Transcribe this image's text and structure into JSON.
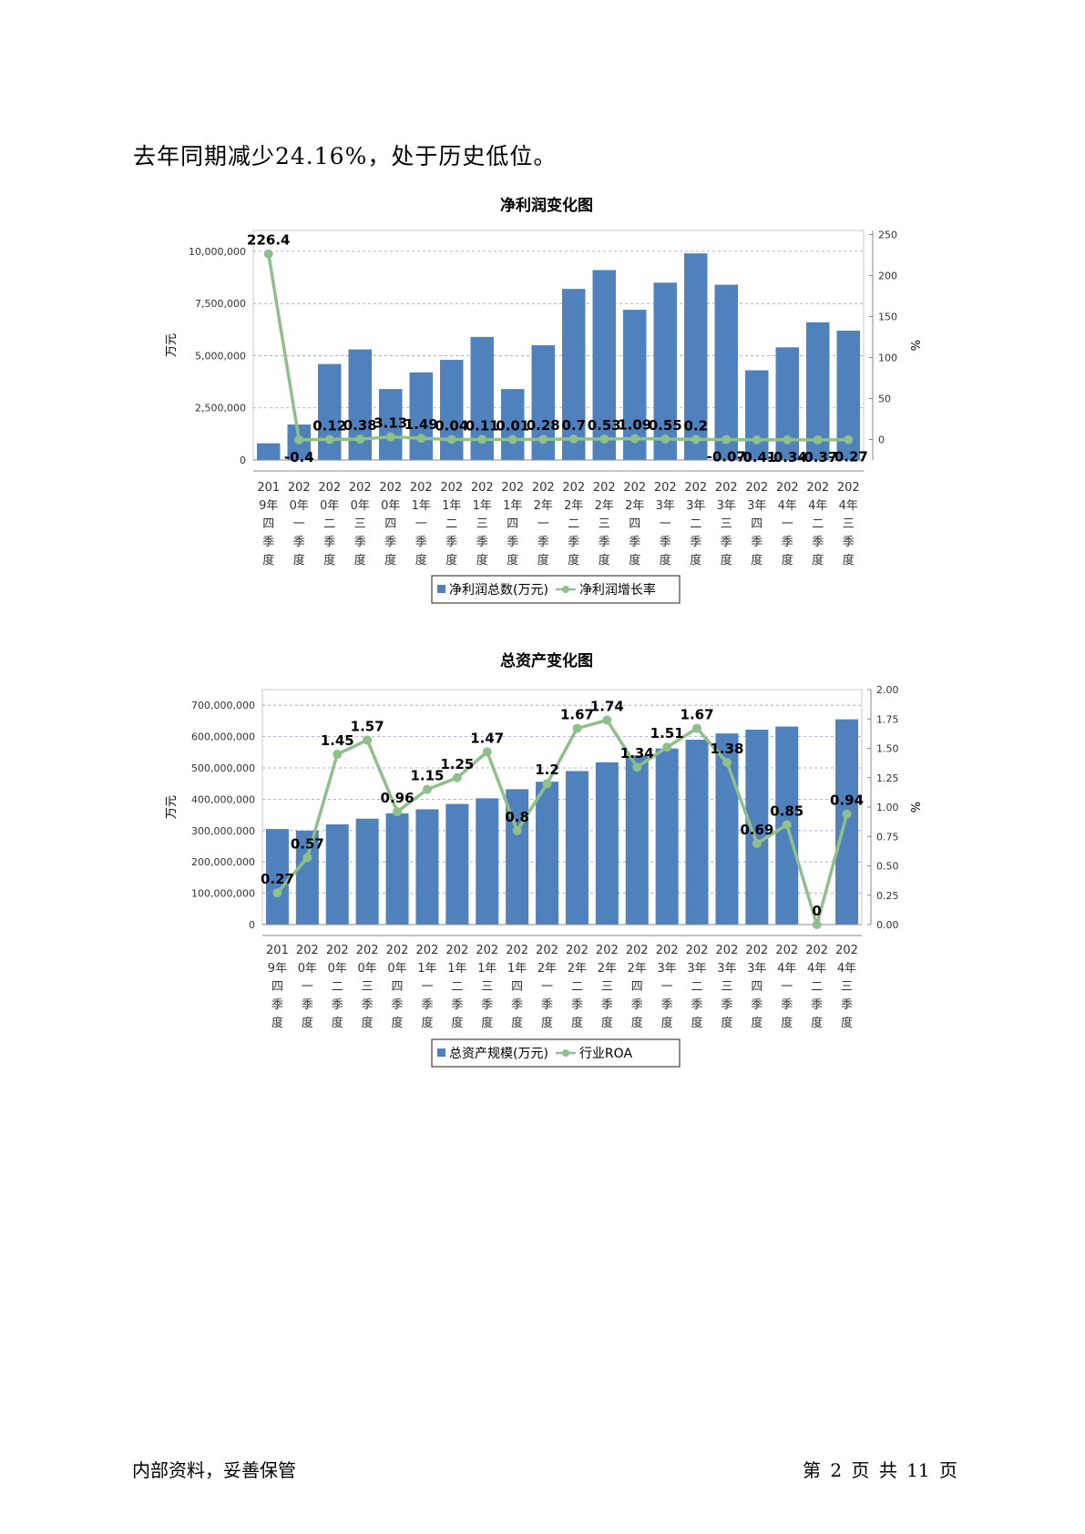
{
  "intro_text": "去年同期减少24.16%，处于历史低位。",
  "footer": {
    "left": "内部资料，妥善保管",
    "right": "第 2 页   共 11 页"
  },
  "chart_data": [
    {
      "type": "bar",
      "title": "净利润变化图",
      "ylabel": "万元",
      "y2label": "%",
      "ylim": [
        0,
        11000000
      ],
      "y2lim": [
        -25,
        255
      ],
      "yticks": [
        0,
        2500000,
        5000000,
        7500000,
        10000000
      ],
      "y2ticks": [
        0,
        50,
        100,
        150,
        200,
        250
      ],
      "grid": true,
      "legend_position": "bottom",
      "bar_color": "#4f81bd",
      "line_color": "#8fbf8a",
      "categories": [
        [
          "201",
          "9年",
          "四",
          "季",
          "度"
        ],
        [
          "202",
          "0年",
          "一",
          "季",
          "度"
        ],
        [
          "202",
          "0年",
          "二",
          "季",
          "度"
        ],
        [
          "202",
          "0年",
          "三",
          "季",
          "度"
        ],
        [
          "202",
          "0年",
          "四",
          "季",
          "度"
        ],
        [
          "202",
          "1年",
          "一",
          "季",
          "度"
        ],
        [
          "202",
          "1年",
          "二",
          "季",
          "度"
        ],
        [
          "202",
          "1年",
          "三",
          "季",
          "度"
        ],
        [
          "202",
          "1年",
          "四",
          "季",
          "度"
        ],
        [
          "202",
          "2年",
          "一",
          "季",
          "度"
        ],
        [
          "202",
          "2年",
          "二",
          "季",
          "度"
        ],
        [
          "202",
          "2年",
          "三",
          "季",
          "度"
        ],
        [
          "202",
          "2年",
          "四",
          "季",
          "度"
        ],
        [
          "202",
          "3年",
          "一",
          "季",
          "度"
        ],
        [
          "202",
          "3年",
          "二",
          "季",
          "度"
        ],
        [
          "202",
          "3年",
          "三",
          "季",
          "度"
        ],
        [
          "202",
          "3年",
          "四",
          "季",
          "度"
        ],
        [
          "202",
          "4年",
          "一",
          "季",
          "度"
        ],
        [
          "202",
          "4年",
          "二",
          "季",
          "度"
        ],
        [
          "202",
          "4年",
          "三",
          "季",
          "度"
        ]
      ],
      "series": [
        {
          "name": "净利润总数(万元)",
          "kind": "bar",
          "values": [
            800000,
            1700000,
            4600000,
            5300000,
            3400000,
            4200000,
            4800000,
            5900000,
            3400000,
            5500000,
            8200000,
            9100000,
            7200000,
            8500000,
            9900000,
            8400000,
            4300000,
            5400000,
            6600000,
            6200000
          ]
        },
        {
          "name": "净利润增长率",
          "kind": "line",
          "values": [
            226.4,
            -0.4,
            0.12,
            0.38,
            3.13,
            1.49,
            0.04,
            0.11,
            0.01,
            0.28,
            0.7,
            0.53,
            1.09,
            0.55,
            0.2,
            -0.07,
            -0.41,
            -0.34,
            -0.37,
            -0.27
          ],
          "labels": [
            "226.4",
            "-0.4",
            "0.12",
            "0.38",
            "3.13",
            "1.49",
            "0.04",
            "0.11",
            "0.01",
            "0.28",
            "0.7",
            "0.53",
            "1.09",
            "0.55",
            "0.2",
            "-0.07",
            "-0.41",
            "-0.34",
            "-0.37",
            "-0.27"
          ]
        }
      ]
    },
    {
      "type": "bar",
      "title": "总资产变化图",
      "ylabel": "万元",
      "y2label": "%",
      "ylim": [
        0,
        750000000
      ],
      "y2lim": [
        0,
        2.0
      ],
      "yticks": [
        0,
        100000000,
        200000000,
        300000000,
        400000000,
        500000000,
        600000000,
        700000000
      ],
      "y2ticks": [
        0,
        0.25,
        0.5,
        0.75,
        1.0,
        1.25,
        1.5,
        1.75,
        2.0
      ],
      "grid": true,
      "legend_position": "bottom",
      "bar_color": "#4f81bd",
      "line_color": "#8fbf8a",
      "categories": [
        [
          "201",
          "9年",
          "四",
          "季",
          "度"
        ],
        [
          "202",
          "0年",
          "一",
          "季",
          "度"
        ],
        [
          "202",
          "0年",
          "二",
          "季",
          "度"
        ],
        [
          "202",
          "0年",
          "三",
          "季",
          "度"
        ],
        [
          "202",
          "0年",
          "四",
          "季",
          "度"
        ],
        [
          "202",
          "1年",
          "一",
          "季",
          "度"
        ],
        [
          "202",
          "1年",
          "二",
          "季",
          "度"
        ],
        [
          "202",
          "1年",
          "三",
          "季",
          "度"
        ],
        [
          "202",
          "1年",
          "四",
          "季",
          "度"
        ],
        [
          "202",
          "2年",
          "一",
          "季",
          "度"
        ],
        [
          "202",
          "2年",
          "二",
          "季",
          "度"
        ],
        [
          "202",
          "2年",
          "三",
          "季",
          "度"
        ],
        [
          "202",
          "2年",
          "四",
          "季",
          "度"
        ],
        [
          "202",
          "3年",
          "一",
          "季",
          "度"
        ],
        [
          "202",
          "3年",
          "二",
          "季",
          "度"
        ],
        [
          "202",
          "3年",
          "三",
          "季",
          "度"
        ],
        [
          "202",
          "3年",
          "四",
          "季",
          "度"
        ],
        [
          "202",
          "4年",
          "一",
          "季",
          "度"
        ],
        [
          "202",
          "4年",
          "二",
          "季",
          "度"
        ],
        [
          "202",
          "4年",
          "三",
          "季",
          "度"
        ]
      ],
      "series": [
        {
          "name": "总资产规模(万元)",
          "kind": "bar",
          "values": [
            305000000,
            300000000,
            320000000,
            338000000,
            355000000,
            368000000,
            385000000,
            403000000,
            432000000,
            456000000,
            490000000,
            518000000,
            540000000,
            562000000,
            590000000,
            610000000,
            622000000,
            632000000,
            null,
            655000000
          ]
        },
        {
          "name": "行业ROA",
          "kind": "line",
          "values": [
            0.27,
            0.57,
            1.45,
            1.57,
            0.96,
            1.15,
            1.25,
            1.47,
            0.8,
            1.2,
            1.67,
            1.74,
            1.34,
            1.51,
            1.67,
            1.38,
            0.69,
            0.85,
            0,
            0.94
          ],
          "labels": [
            "0.27",
            "0.57",
            "1.45",
            "1.57",
            "0.96",
            "1.15",
            "1.25",
            "1.47",
            "0.8",
            "1.2",
            "1.67",
            "1.74",
            "1.34",
            "1.51",
            "1.67",
            "1.38",
            "0.69",
            "0.85",
            "0",
            "0.94"
          ]
        }
      ]
    }
  ]
}
